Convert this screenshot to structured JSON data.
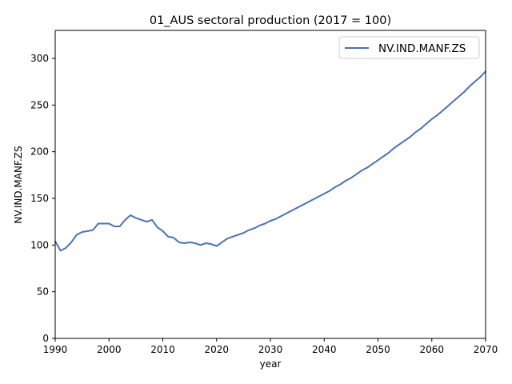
{
  "chart_data": {
    "type": "line",
    "title": "01_AUS sectoral production (2017 = 100)",
    "xlabel": "year",
    "ylabel": "NV.IND.MANF.ZS",
    "xlim": [
      1990,
      2070
    ],
    "ylim": [
      0,
      330
    ],
    "xticks": [
      1990,
      2000,
      2010,
      2020,
      2030,
      2040,
      2050,
      2060,
      2070
    ],
    "yticks": [
      0,
      50,
      100,
      150,
      200,
      250,
      300
    ],
    "grid": false,
    "legend_position": "top-right",
    "series": [
      {
        "name": "NV.IND.MANF.ZS",
        "color": "#4c72b0",
        "x": [
          1990,
          1991,
          1992,
          1993,
          1994,
          1995,
          1996,
          1997,
          1998,
          1999,
          2000,
          2001,
          2002,
          2003,
          2004,
          2005,
          2006,
          2007,
          2008,
          2009,
          2010,
          2011,
          2012,
          2013,
          2014,
          2015,
          2016,
          2017,
          2018,
          2019,
          2020,
          2021,
          2022,
          2023,
          2024,
          2025,
          2026,
          2027,
          2028,
          2029,
          2030,
          2031,
          2032,
          2033,
          2034,
          2035,
          2036,
          2037,
          2038,
          2039,
          2040,
          2041,
          2042,
          2043,
          2044,
          2045,
          2046,
          2047,
          2048,
          2049,
          2050,
          2051,
          2052,
          2053,
          2054,
          2055,
          2056,
          2057,
          2058,
          2059,
          2060,
          2061,
          2062,
          2063,
          2064,
          2065,
          2066,
          2067,
          2068,
          2069,
          2070
        ],
        "y": [
          104,
          94,
          97,
          103,
          111,
          114,
          115,
          116,
          123,
          123,
          123,
          120,
          120,
          127,
          132,
          129,
          127,
          125,
          127,
          119,
          115,
          109,
          108,
          103,
          102,
          103,
          102,
          100,
          102,
          101,
          99,
          103,
          107,
          109,
          111,
          113,
          116,
          118,
          121,
          123,
          126,
          128,
          131,
          134,
          137,
          140,
          143,
          146,
          149,
          152,
          155,
          158,
          162,
          165,
          169,
          172,
          176,
          180,
          183,
          187,
          191,
          195,
          199,
          204,
          208,
          212,
          216,
          221,
          225,
          230,
          235,
          239,
          244,
          249,
          254,
          259,
          264,
          270,
          275,
          280,
          286
        ]
      }
    ]
  }
}
